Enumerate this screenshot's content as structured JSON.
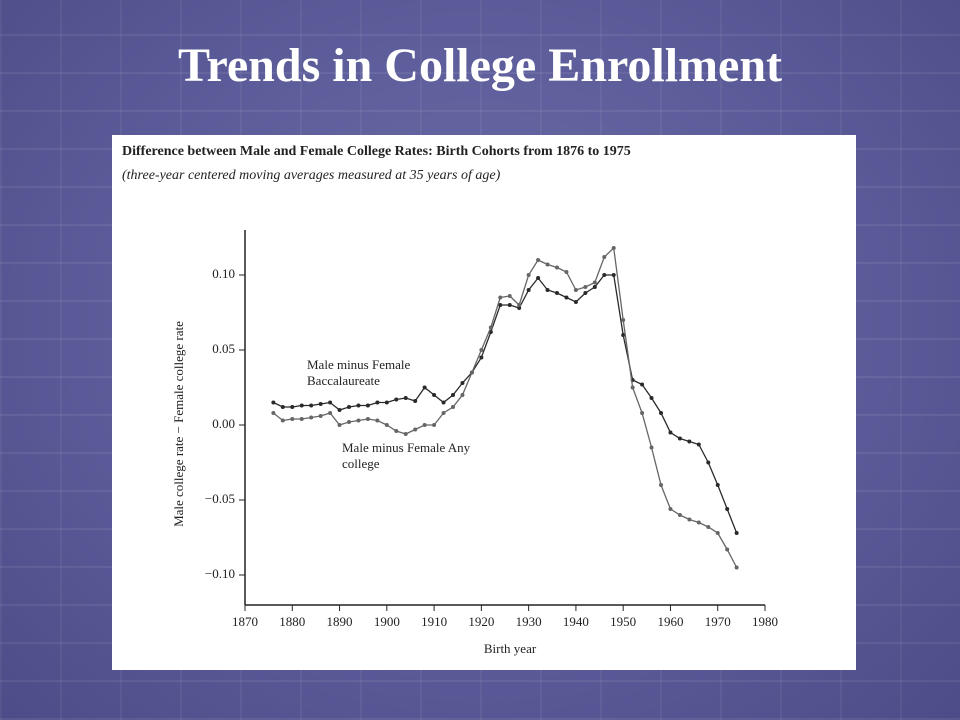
{
  "slide": {
    "title": "Trends in College Enrollment"
  },
  "chart_data": {
    "type": "line",
    "title": "Difference between Male and Female College Rates: Birth Cohorts from 1876 to 1975",
    "subtitle": "(three-year centered moving averages measured at 35 years of age)",
    "xlabel": "Birth year",
    "ylabel": "Male college rate − Female college rate",
    "x": [
      1876,
      1878,
      1880,
      1882,
      1884,
      1886,
      1888,
      1890,
      1892,
      1894,
      1896,
      1898,
      1900,
      1902,
      1904,
      1906,
      1908,
      1910,
      1912,
      1914,
      1916,
      1918,
      1920,
      1922,
      1924,
      1926,
      1928,
      1930,
      1932,
      1934,
      1936,
      1938,
      1940,
      1942,
      1944,
      1946,
      1948,
      1950,
      1952,
      1954,
      1956,
      1958,
      1960,
      1962,
      1964,
      1966,
      1968,
      1970,
      1972,
      1974
    ],
    "series": [
      {
        "name": "Male minus Female Baccalaureate",
        "color": "#2a2a2a",
        "values": [
          0.015,
          0.012,
          0.012,
          0.013,
          0.013,
          0.014,
          0.015,
          0.01,
          0.012,
          0.013,
          0.013,
          0.015,
          0.015,
          0.017,
          0.018,
          0.016,
          0.025,
          0.02,
          0.015,
          0.02,
          0.028,
          0.035,
          0.045,
          0.062,
          0.08,
          0.08,
          0.078,
          0.09,
          0.098,
          0.09,
          0.088,
          0.085,
          0.082,
          0.088,
          0.092,
          0.1,
          0.1,
          0.06,
          0.03,
          0.027,
          0.018,
          0.008,
          -0.005,
          -0.009,
          -0.011,
          -0.013,
          -0.025,
          -0.04,
          -0.056,
          -0.072
        ]
      },
      {
        "name": "Male minus Female Any college",
        "color": "#666666",
        "values": [
          0.008,
          0.003,
          0.004,
          0.004,
          0.005,
          0.006,
          0.008,
          0.0,
          0.002,
          0.003,
          0.004,
          0.003,
          0.0,
          -0.004,
          -0.006,
          -0.003,
          0.0,
          0.0,
          0.008,
          0.012,
          0.02,
          0.035,
          0.05,
          0.065,
          0.085,
          0.086,
          0.08,
          0.1,
          0.11,
          0.107,
          0.105,
          0.102,
          0.09,
          0.092,
          0.095,
          0.112,
          0.118,
          0.07,
          0.025,
          0.008,
          -0.015,
          -0.04,
          -0.056,
          -0.06,
          -0.063,
          -0.065,
          -0.068,
          -0.072,
          -0.083,
          -0.095
        ]
      }
    ],
    "xlim": [
      1870,
      1980
    ],
    "xticks": [
      1870,
      1880,
      1890,
      1900,
      1910,
      1920,
      1930,
      1940,
      1950,
      1960,
      1970,
      1980
    ],
    "ylim": [
      -0.12,
      0.13
    ],
    "yticks": [
      {
        "value": -0.1,
        "label": "−0.10"
      },
      {
        "value": -0.05,
        "label": "−0.05"
      },
      {
        "value": 0,
        "label": "0.00"
      },
      {
        "value": 0.05,
        "label": "0.05"
      },
      {
        "value": 0.1,
        "label": "0.10"
      }
    ]
  }
}
